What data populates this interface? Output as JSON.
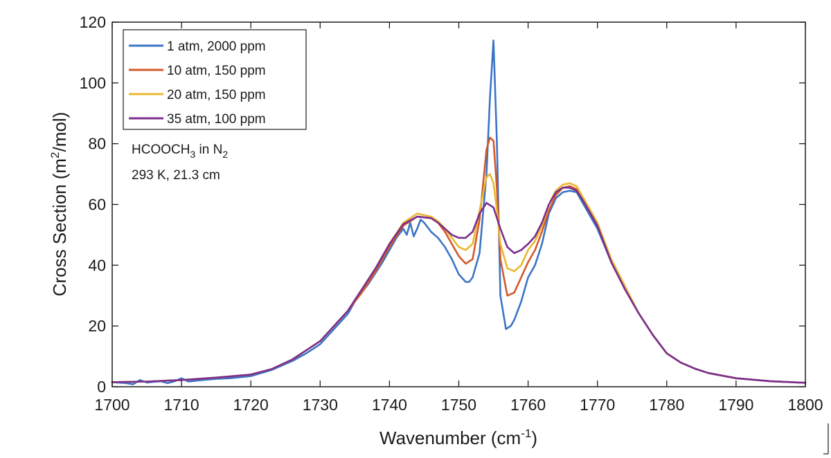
{
  "chart_data": {
    "type": "line",
    "xlabel": "Wavenumber (cm",
    "xlabel_sup": "-1",
    "xlabel_end": ")",
    "ylabel": "Cross Section (m",
    "ylabel_sup": "2",
    "ylabel_end": "/mol)",
    "xlim": [
      1700,
      1800
    ],
    "ylim": [
      0,
      120
    ],
    "x_ticks": [
      1700,
      1710,
      1720,
      1730,
      1740,
      1750,
      1760,
      1770,
      1780,
      1790,
      1800
    ],
    "y_ticks": [
      0,
      20,
      40,
      60,
      80,
      100,
      120
    ],
    "x_tick_labels": [
      "1700",
      "1710",
      "1720",
      "1730",
      "1740",
      "1750",
      "1760",
      "1770",
      "1780",
      "1790",
      "1800"
    ],
    "y_tick_labels": [
      "0",
      "20",
      "40",
      "60",
      "80",
      "100",
      "120"
    ],
    "grid": false,
    "legend_position": "top-left",
    "annotation": {
      "line1_main": "HCOOCH",
      "line1_sub1": "3",
      "line1_mid": " in N",
      "line1_sub2": "2",
      "line2": "293 K, 21.3 cm"
    },
    "series": [
      {
        "name": "1 atm, 2000 ppm",
        "color": "#3b74c4",
        "points": [
          [
            1700,
            1.5
          ],
          [
            1702,
            1.2
          ],
          [
            1703,
            0.8
          ],
          [
            1704,
            2.2
          ],
          [
            1705,
            1.4
          ],
          [
            1706,
            1.6
          ],
          [
            1707,
            1.8
          ],
          [
            1708,
            1.2
          ],
          [
            1709,
            1.8
          ],
          [
            1710,
            2.8
          ],
          [
            1711,
            1.7
          ],
          [
            1713,
            2.2
          ],
          [
            1715,
            2.6
          ],
          [
            1717,
            2.8
          ],
          [
            1720,
            3.5
          ],
          [
            1723,
            5.5
          ],
          [
            1726,
            8.5
          ],
          [
            1728,
            11
          ],
          [
            1730,
            14
          ],
          [
            1732,
            19
          ],
          [
            1734,
            24
          ],
          [
            1735,
            28
          ],
          [
            1737,
            34
          ],
          [
            1739,
            41
          ],
          [
            1740,
            45
          ],
          [
            1741,
            49
          ],
          [
            1742,
            52
          ],
          [
            1742.5,
            50
          ],
          [
            1743,
            54
          ],
          [
            1743.5,
            49.5
          ],
          [
            1744,
            52
          ],
          [
            1744.5,
            55
          ],
          [
            1745,
            54
          ],
          [
            1746,
            51
          ],
          [
            1747,
            49
          ],
          [
            1748,
            46
          ],
          [
            1749,
            42
          ],
          [
            1750,
            37
          ],
          [
            1751,
            34.5
          ],
          [
            1751.5,
            34.5
          ],
          [
            1752,
            36
          ],
          [
            1753,
            44
          ],
          [
            1754,
            70
          ],
          [
            1754.5,
            95
          ],
          [
            1755,
            114
          ],
          [
            1755.5,
            80
          ],
          [
            1756,
            30
          ],
          [
            1756.8,
            19
          ],
          [
            1757.5,
            20
          ],
          [
            1758,
            22
          ],
          [
            1759,
            28
          ],
          [
            1760,
            36
          ],
          [
            1761,
            40
          ],
          [
            1762,
            47
          ],
          [
            1763,
            57
          ],
          [
            1764,
            62
          ],
          [
            1765,
            64
          ],
          [
            1766,
            64.5
          ],
          [
            1767,
            64
          ],
          [
            1768,
            60
          ],
          [
            1770,
            52
          ],
          [
            1772,
            41
          ],
          [
            1774,
            32
          ],
          [
            1776,
            24
          ],
          [
            1778,
            17
          ],
          [
            1780,
            11
          ],
          [
            1782,
            8
          ],
          [
            1784,
            6
          ],
          [
            1786,
            4.5
          ],
          [
            1790,
            2.8
          ],
          [
            1795,
            1.8
          ],
          [
            1800,
            1.3
          ]
        ]
      },
      {
        "name": "10 atm, 150 ppm",
        "color": "#d4582a",
        "points": [
          [
            1700,
            1.5
          ],
          [
            1705,
            1.7
          ],
          [
            1710,
            2.2
          ],
          [
            1715,
            3
          ],
          [
            1720,
            4
          ],
          [
            1723,
            5.8
          ],
          [
            1726,
            9
          ],
          [
            1728,
            12
          ],
          [
            1730,
            15
          ],
          [
            1732,
            20
          ],
          [
            1734,
            25
          ],
          [
            1736,
            31
          ],
          [
            1738,
            38
          ],
          [
            1740,
            46
          ],
          [
            1742,
            53
          ],
          [
            1744,
            56
          ],
          [
            1746,
            55.5
          ],
          [
            1747,
            54
          ],
          [
            1748,
            51
          ],
          [
            1749,
            47
          ],
          [
            1750,
            43
          ],
          [
            1751,
            40.5
          ],
          [
            1752,
            42
          ],
          [
            1753,
            55
          ],
          [
            1754,
            78
          ],
          [
            1754.5,
            82
          ],
          [
            1755,
            81
          ],
          [
            1755.5,
            65
          ],
          [
            1756,
            42
          ],
          [
            1757,
            30
          ],
          [
            1758,
            31
          ],
          [
            1759,
            36
          ],
          [
            1760,
            41
          ],
          [
            1761,
            45
          ],
          [
            1762,
            51
          ],
          [
            1763,
            58
          ],
          [
            1764,
            63
          ],
          [
            1765,
            65.5
          ],
          [
            1766,
            66
          ],
          [
            1767,
            65
          ],
          [
            1768,
            61
          ],
          [
            1770,
            53
          ],
          [
            1772,
            41
          ],
          [
            1774,
            32
          ],
          [
            1776,
            24
          ],
          [
            1778,
            17
          ],
          [
            1780,
            11
          ],
          [
            1782,
            8
          ],
          [
            1784,
            6
          ],
          [
            1786,
            4.5
          ],
          [
            1790,
            2.8
          ],
          [
            1795,
            1.8
          ],
          [
            1800,
            1.3
          ]
        ]
      },
      {
        "name": "20 atm, 150 ppm",
        "color": "#e8b830",
        "points": [
          [
            1700,
            1.5
          ],
          [
            1705,
            1.7
          ],
          [
            1710,
            2.2
          ],
          [
            1715,
            3
          ],
          [
            1720,
            4
          ],
          [
            1723,
            5.8
          ],
          [
            1726,
            9
          ],
          [
            1728,
            12
          ],
          [
            1730,
            15
          ],
          [
            1732,
            20
          ],
          [
            1734,
            25
          ],
          [
            1736,
            32
          ],
          [
            1738,
            39
          ],
          [
            1740,
            47
          ],
          [
            1742,
            54
          ],
          [
            1744,
            57
          ],
          [
            1746,
            56
          ],
          [
            1747,
            54.5
          ],
          [
            1748,
            52
          ],
          [
            1749,
            49
          ],
          [
            1750,
            46
          ],
          [
            1751,
            45
          ],
          [
            1752,
            47
          ],
          [
            1753,
            58
          ],
          [
            1754,
            69
          ],
          [
            1754.5,
            70
          ],
          [
            1755,
            67
          ],
          [
            1755.5,
            58
          ],
          [
            1756,
            47
          ],
          [
            1757,
            39
          ],
          [
            1758,
            38
          ],
          [
            1759,
            40
          ],
          [
            1760,
            45
          ],
          [
            1761,
            48
          ],
          [
            1762,
            53
          ],
          [
            1763,
            60
          ],
          [
            1764,
            64.5
          ],
          [
            1765,
            66.5
          ],
          [
            1766,
            67
          ],
          [
            1767,
            66
          ],
          [
            1768,
            62
          ],
          [
            1770,
            54
          ],
          [
            1772,
            42
          ],
          [
            1774,
            33
          ],
          [
            1776,
            24
          ],
          [
            1778,
            17
          ],
          [
            1780,
            11
          ],
          [
            1782,
            8
          ],
          [
            1784,
            6
          ],
          [
            1786,
            4.5
          ],
          [
            1790,
            2.8
          ],
          [
            1795,
            1.8
          ],
          [
            1800,
            1.3
          ]
        ]
      },
      {
        "name": "35 atm, 100 ppm",
        "color": "#7b2d8e",
        "points": [
          [
            1700,
            1.5
          ],
          [
            1705,
            1.7
          ],
          [
            1710,
            2.2
          ],
          [
            1715,
            3
          ],
          [
            1720,
            4
          ],
          [
            1723,
            5.8
          ],
          [
            1726,
            9
          ],
          [
            1728,
            12
          ],
          [
            1730,
            15
          ],
          [
            1732,
            20
          ],
          [
            1734,
            25
          ],
          [
            1736,
            32
          ],
          [
            1738,
            39
          ],
          [
            1740,
            47
          ],
          [
            1742,
            53.5
          ],
          [
            1744,
            56
          ],
          [
            1746,
            55.5
          ],
          [
            1747,
            54
          ],
          [
            1748,
            52
          ],
          [
            1749,
            50
          ],
          [
            1750,
            49
          ],
          [
            1751,
            49
          ],
          [
            1752,
            51
          ],
          [
            1753,
            57
          ],
          [
            1754,
            60.5
          ],
          [
            1755,
            59
          ],
          [
            1756,
            52
          ],
          [
            1757,
            46
          ],
          [
            1758,
            44
          ],
          [
            1759,
            45
          ],
          [
            1760,
            47
          ],
          [
            1761,
            49.5
          ],
          [
            1762,
            54
          ],
          [
            1763,
            60
          ],
          [
            1764,
            64
          ],
          [
            1765,
            65.5
          ],
          [
            1766,
            65.5
          ],
          [
            1767,
            64.5
          ],
          [
            1768,
            61
          ],
          [
            1770,
            53
          ],
          [
            1772,
            41
          ],
          [
            1774,
            32
          ],
          [
            1776,
            24
          ],
          [
            1778,
            17
          ],
          [
            1780,
            11
          ],
          [
            1782,
            8
          ],
          [
            1784,
            6
          ],
          [
            1786,
            4.5
          ],
          [
            1790,
            2.8
          ],
          [
            1795,
            1.8
          ],
          [
            1800,
            1.3
          ]
        ]
      }
    ]
  }
}
